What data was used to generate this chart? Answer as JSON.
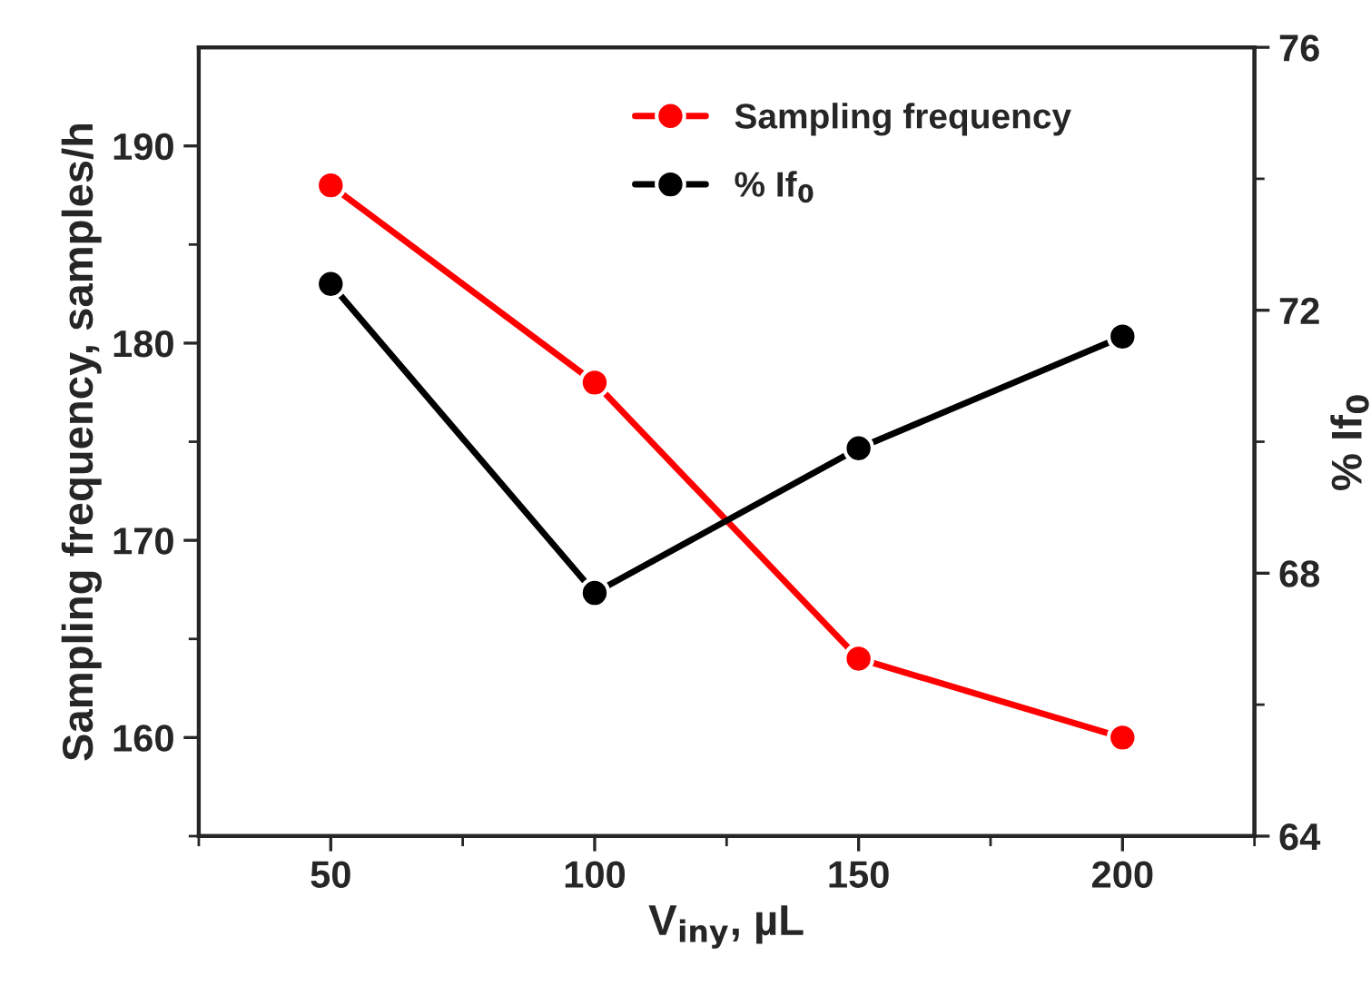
{
  "chart_data": {
    "type": "line",
    "xlabel": "V$_{iny}$, µL",
    "ylabel": "Sampling frequency, samples/h",
    "y2label": "% If$_{0}$",
    "x": [
      50,
      100,
      150,
      200
    ],
    "series": [
      {
        "name": "Sampling frequency",
        "color": "#ff0000",
        "values": [
          188,
          178,
          164,
          160
        ]
      },
      {
        "name": "% If$_{0}$",
        "color": "#000000",
        "values": [
          72.4,
          67.7,
          69.9,
          71.6
        ],
        "axis": "y2"
      }
    ],
    "xlim": [
      25,
      225
    ],
    "xticks": [
      50,
      100,
      150,
      200
    ],
    "ylim": [
      155,
      195
    ],
    "yticks": [
      160,
      170,
      180,
      190
    ],
    "y2lim": [
      64,
      76
    ],
    "y2ticks": [
      64,
      68,
      72,
      76
    ],
    "marker": "circle",
    "line_style": "solid",
    "legend": "top",
    "grid": false
  }
}
